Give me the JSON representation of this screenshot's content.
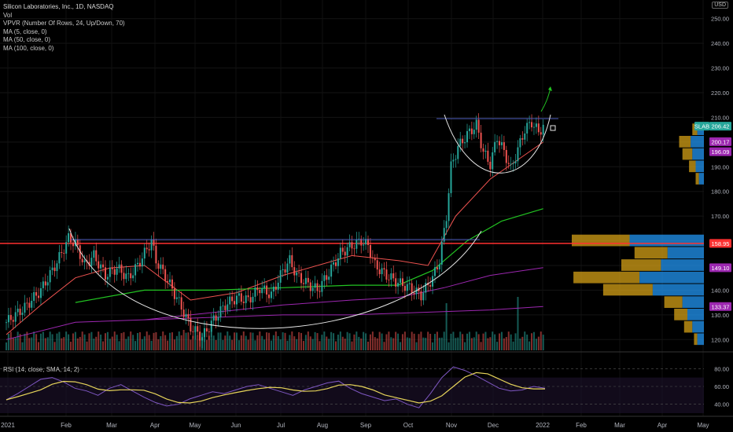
{
  "legend": {
    "title": "Silicon Laboratories, Inc., 1D, NASDAQ",
    "items": [
      "Vol",
      "VPVR (Number Of Rows, 24, Up/Down, 70)",
      "MA (5, close, 0)",
      "MA (50, close, 0)",
      "MA (100, close, 0)"
    ],
    "ma5": "MA (5, close, 0)",
    "vol": "Vol",
    "vpvr": "VPVR (Number Of Rows, 24, Up/Down, 70)",
    "ma50": "MA (50, close, 0)",
    "ma100": "MA (100, close, 0)"
  },
  "price_axis_unit": "USD",
  "rsi_label": "RSI (14, close, SMA, 14, 2)",
  "colors": {
    "up": "#26a69a",
    "down": "#ef5350",
    "ma5": "#ef5350",
    "ma50": "#22c322",
    "ma100": "#9c27b0",
    "resistance": "#ff3030",
    "pattern": "#e6e6e6",
    "vpvr_up": "#2196f3",
    "vpvr_down": "#d4a017",
    "rsi": "#7e57c2",
    "rsi_ma": "#e6d45a"
  },
  "chart_data": {
    "type": "candlestick",
    "symbol": "SLAB",
    "interval": "1D",
    "ylim": [
      115,
      255
    ],
    "x_ticks": [
      "2021",
      "Feb",
      "Mar",
      "Apr",
      "May",
      "Jun",
      "Jul",
      "Aug",
      "Sep",
      "Oct",
      "Nov",
      "Dec",
      "2022",
      "Feb",
      "Mar",
      "Apr",
      "May"
    ],
    "y_ticks": [
      120,
      130,
      140,
      150,
      160,
      170,
      180,
      190,
      200,
      210,
      220,
      230,
      240,
      250
    ],
    "price_labels": [
      {
        "text": "SLAB",
        "value": 206.42,
        "color": "#26a69a"
      },
      {
        "text": "206.42",
        "value": 206.42,
        "color": "#26a69a"
      },
      {
        "text": "200.17",
        "value": 200.17,
        "color": "#9c27b0"
      },
      {
        "text": "196.09",
        "value": 196.09,
        "color": "#9c27b0"
      },
      {
        "text": "158.95",
        "value": 158.95,
        "color": "#ff3030"
      },
      {
        "text": "149.10",
        "value": 149.1,
        "color": "#9c27b0"
      },
      {
        "text": "133.37",
        "value": 133.37,
        "color": "#9c27b0"
      }
    ],
    "price_path": [
      [
        0,
        127
      ],
      [
        8,
        133
      ],
      [
        15,
        140
      ],
      [
        20,
        148
      ],
      [
        24,
        155
      ],
      [
        27,
        161
      ],
      [
        30,
        159
      ],
      [
        34,
        150
      ],
      [
        38,
        154
      ],
      [
        43,
        146
      ],
      [
        48,
        149
      ],
      [
        53,
        145
      ],
      [
        57,
        150
      ],
      [
        60,
        155
      ],
      [
        63,
        160
      ],
      [
        65,
        152
      ],
      [
        70,
        144
      ],
      [
        75,
        135
      ],
      [
        80,
        125
      ],
      [
        85,
        121
      ],
      [
        90,
        128
      ],
      [
        95,
        134
      ],
      [
        100,
        137
      ],
      [
        105,
        136
      ],
      [
        110,
        141
      ],
      [
        115,
        138
      ],
      [
        120,
        148
      ],
      [
        123,
        152
      ],
      [
        126,
        146
      ],
      [
        130,
        143
      ],
      [
        135,
        140
      ],
      [
        140,
        147
      ],
      [
        145,
        155
      ],
      [
        150,
        158
      ],
      [
        154,
        160
      ],
      [
        157,
        158
      ],
      [
        160,
        150
      ],
      [
        165,
        146
      ],
      [
        170,
        143
      ],
      [
        175,
        141
      ],
      [
        180,
        138
      ],
      [
        185,
        145
      ],
      [
        188,
        152
      ],
      [
        191,
        170
      ],
      [
        193,
        190
      ],
      [
        196,
        198
      ],
      [
        200,
        203
      ],
      [
        204,
        207
      ],
      [
        207,
        196
      ],
      [
        210,
        191
      ],
      [
        213,
        202
      ],
      [
        216,
        196
      ],
      [
        219,
        189
      ],
      [
        222,
        197
      ],
      [
        225,
        205
      ],
      [
        228,
        208
      ],
      [
        231,
        204
      ],
      [
        233,
        206.42
      ]
    ],
    "resistance_level": 158.95,
    "ma50_path": [
      [
        30,
        135
      ],
      [
        60,
        140
      ],
      [
        90,
        140
      ],
      [
        120,
        141
      ],
      [
        150,
        142
      ],
      [
        170,
        142
      ],
      [
        185,
        148
      ],
      [
        200,
        160
      ],
      [
        215,
        168
      ],
      [
        233,
        173
      ]
    ],
    "ma100_path": [
      [
        60,
        128
      ],
      [
        90,
        131
      ],
      [
        120,
        134
      ],
      [
        150,
        136
      ],
      [
        170,
        137
      ],
      [
        190,
        141
      ],
      [
        210,
        146
      ],
      [
        233,
        149.1
      ]
    ],
    "ma5_path": [
      [
        0,
        122
      ],
      [
        15,
        134
      ],
      [
        30,
        145
      ],
      [
        45,
        149
      ],
      [
        60,
        150
      ],
      [
        80,
        136
      ],
      [
        100,
        139
      ],
      [
        120,
        146
      ],
      [
        150,
        154
      ],
      [
        170,
        152
      ],
      [
        183,
        150
      ],
      [
        195,
        170
      ],
      [
        210,
        185
      ],
      [
        233,
        200
      ]
    ],
    "ma100_lower_path": [
      [
        0,
        120
      ],
      [
        30,
        127
      ],
      [
        60,
        128
      ],
      [
        90,
        129
      ],
      [
        120,
        130
      ],
      [
        150,
        130
      ],
      [
        180,
        131
      ],
      [
        210,
        132
      ],
      [
        233,
        133.37
      ]
    ],
    "vpvr": [
      {
        "price": 120,
        "up": 8,
        "down": 4
      },
      {
        "price": 125,
        "up": 14,
        "down": 10
      },
      {
        "price": 130,
        "up": 20,
        "down": 16
      },
      {
        "price": 135,
        "up": 26,
        "down": 22
      },
      {
        "price": 140,
        "up": 62,
        "down": 60
      },
      {
        "price": 145,
        "up": 78,
        "down": 80
      },
      {
        "price": 150,
        "up": 52,
        "down": 48
      },
      {
        "price": 155,
        "up": 44,
        "down": 40
      },
      {
        "price": 160,
        "up": 90,
        "down": 70
      },
      {
        "price": 185,
        "up": 6,
        "down": 4
      },
      {
        "price": 190,
        "up": 10,
        "down": 8
      },
      {
        "price": 195,
        "up": 14,
        "down": 12
      },
      {
        "price": 200,
        "up": 16,
        "down": 14
      },
      {
        "price": 205,
        "up": 8,
        "down": 6
      }
    ],
    "rsi": {
      "levels": [
        80.0,
        60.0,
        40.0
      ],
      "tick_labels": [
        "80.00",
        "60.00",
        "40.00"
      ],
      "values": [
        45,
        52,
        60,
        68,
        70,
        65,
        58,
        55,
        50,
        58,
        62,
        55,
        48,
        42,
        38,
        40,
        46,
        50,
        54,
        52,
        56,
        60,
        62,
        58,
        54,
        50,
        56,
        60,
        64,
        66,
        58,
        52,
        48,
        44,
        46,
        40,
        36,
        52,
        70,
        82,
        78,
        72,
        65,
        58,
        55,
        56,
        60,
        58
      ]
    }
  }
}
